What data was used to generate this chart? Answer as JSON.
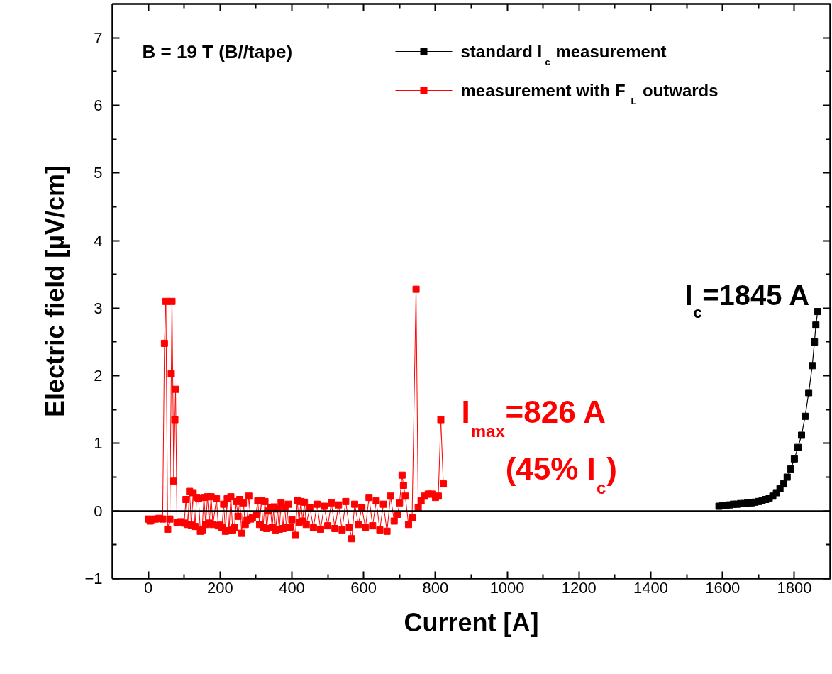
{
  "chart_data": {
    "type": "line",
    "xlabel": "Current [A]",
    "ylabel": "Electric field [µV/cm]",
    "xlim": [
      -100,
      1900
    ],
    "ylim": [
      -1,
      7.5
    ],
    "xticks": [
      0,
      200,
      400,
      600,
      800,
      1000,
      1200,
      1400,
      1600,
      1800
    ],
    "yticks": [
      -1,
      0,
      1,
      2,
      3,
      4,
      5,
      6,
      7
    ],
    "grid": false,
    "legend": "top",
    "marker": "square",
    "line_style": "solid",
    "series": [
      {
        "name": "standard I$_{c}$ measurement",
        "color": "#000000",
        "x": [
          1590,
          1600,
          1610,
          1620,
          1630,
          1640,
          1650,
          1660,
          1670,
          1680,
          1690,
          1700,
          1710,
          1720,
          1730,
          1740,
          1750,
          1760,
          1770,
          1780,
          1790,
          1800,
          1810,
          1820,
          1830,
          1840,
          1850,
          1856,
          1860,
          1865
        ],
        "values": [
          0.07,
          0.08,
          0.08,
          0.09,
          0.1,
          0.1,
          0.11,
          0.11,
          0.12,
          0.12,
          0.13,
          0.14,
          0.15,
          0.17,
          0.19,
          0.22,
          0.27,
          0.33,
          0.4,
          0.5,
          0.62,
          0.77,
          0.94,
          1.12,
          1.4,
          1.75,
          2.15,
          2.5,
          2.75,
          2.95
        ]
      },
      {
        "name": "measurement with F$_{L}$ outwards",
        "color": "#ff0000",
        "x": [
          0,
          5,
          10,
          20,
          30,
          40,
          45,
          49,
          54,
          60,
          64,
          66,
          71,
          74,
          76,
          80,
          90,
          100,
          105,
          110,
          115,
          120,
          125,
          130,
          135,
          140,
          145,
          150,
          155,
          160,
          165,
          170,
          175,
          180,
          190,
          195,
          200,
          205,
          210,
          215,
          220,
          225,
          230,
          235,
          240,
          245,
          250,
          255,
          260,
          265,
          270,
          275,
          280,
          285,
          290,
          300,
          305,
          310,
          315,
          320,
          325,
          330,
          335,
          340,
          345,
          350,
          355,
          360,
          365,
          370,
          375,
          380,
          385,
          390,
          395,
          400,
          410,
          415,
          420,
          425,
          430,
          435,
          440,
          450,
          460,
          470,
          480,
          490,
          500,
          510,
          520,
          530,
          540,
          550,
          560,
          567,
          575,
          585,
          595,
          605,
          615,
          625,
          635,
          645,
          655,
          665,
          675,
          685,
          695,
          700,
          707,
          711,
          716,
          725,
          735,
          746,
          752,
          760,
          770,
          780,
          790,
          800,
          808,
          815,
          822
        ],
        "values": [
          -0.12,
          -0.15,
          -0.13,
          -0.12,
          -0.11,
          -0.12,
          2.48,
          3.1,
          -0.27,
          -0.12,
          2.03,
          3.1,
          0.44,
          1.35,
          1.8,
          -0.17,
          -0.16,
          -0.18,
          0.17,
          -0.2,
          0.29,
          -0.21,
          0.27,
          -0.23,
          0.2,
          0.18,
          -0.3,
          -0.28,
          0.2,
          -0.2,
          0.21,
          -0.18,
          0.21,
          -0.2,
          0.18,
          -0.22,
          -0.21,
          -0.25,
          0.1,
          -0.3,
          0.18,
          -0.29,
          0.21,
          -0.28,
          -0.25,
          0.14,
          -0.08,
          0.17,
          -0.33,
          0.12,
          -0.2,
          -0.14,
          0.22,
          -0.12,
          -0.1,
          -0.05,
          0.15,
          -0.2,
          0.15,
          -0.24,
          0.14,
          -0.26,
          0.0,
          0.05,
          -0.24,
          0.06,
          -0.28,
          0.03,
          -0.27,
          0.12,
          -0.26,
          0.06,
          -0.25,
          0.1,
          -0.24,
          -0.13,
          -0.36,
          0.16,
          -0.17,
          0.14,
          -0.15,
          0.13,
          -0.2,
          0.05,
          -0.25,
          0.1,
          -0.27,
          0.07,
          -0.22,
          0.12,
          -0.26,
          0.09,
          -0.28,
          0.14,
          -0.24,
          -0.41,
          0.1,
          -0.2,
          0.05,
          -0.25,
          0.2,
          -0.22,
          0.15,
          -0.28,
          0.1,
          -0.3,
          0.22,
          -0.15,
          -0.05,
          0.12,
          0.53,
          0.38,
          0.22,
          -0.2,
          -0.1,
          3.28,
          0.05,
          0.15,
          0.22,
          0.25,
          0.25,
          0.2,
          0.22,
          1.35,
          0.4
        ]
      }
    ],
    "ref_lines": [
      {
        "axis": "y",
        "value": 0,
        "color": "#000000"
      }
    ],
    "annotations": [
      "B = 19 T (B//tape)",
      "I$_{c}$=1845 A",
      "I$_{max}$=826 A",
      "(45% I$_{c}$)"
    ]
  }
}
